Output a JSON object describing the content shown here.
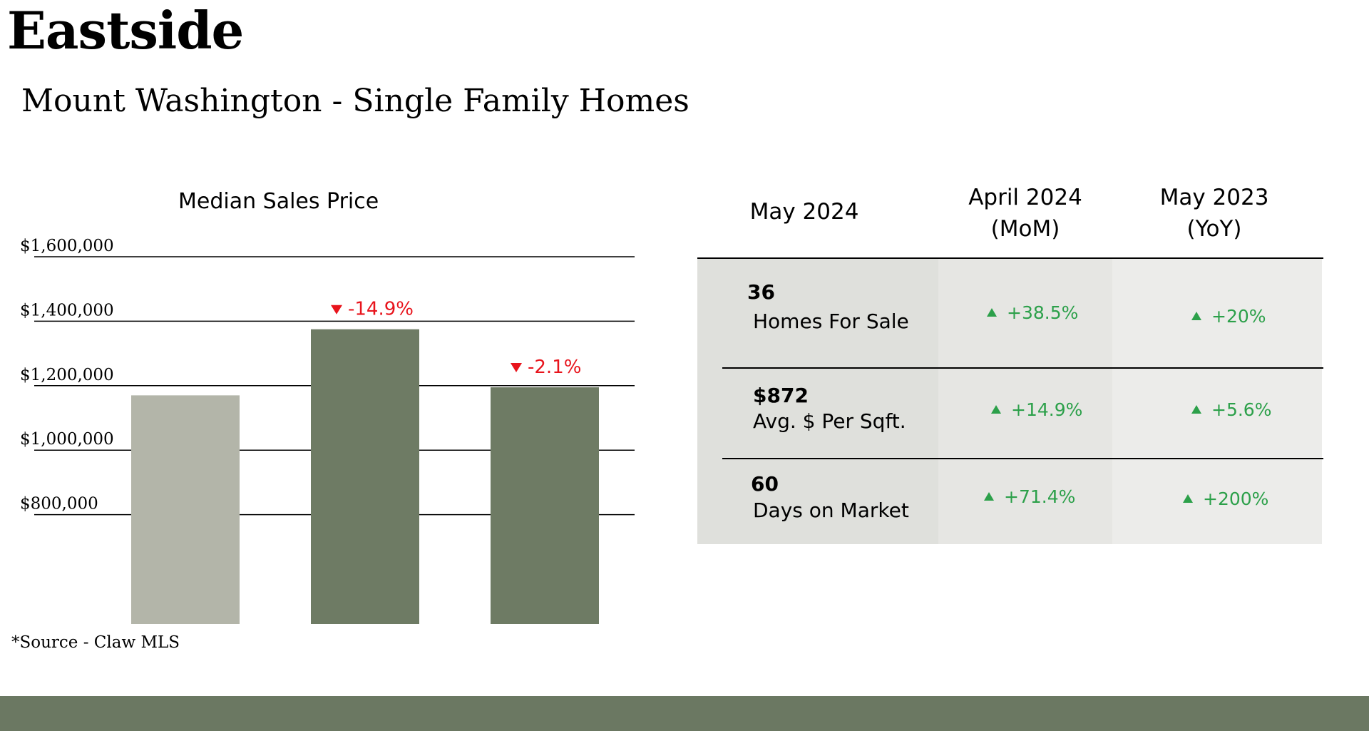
{
  "region": "Eastside",
  "subtitle": "Mount Washington - Single Family Homes",
  "source": "*Source - Claw MLS",
  "colors": {
    "bar_current": "#b3b5a9",
    "bar_compare": "#6e7b64",
    "negative": "#e8141c",
    "positive": "#2ca04a",
    "footer": "#6b7862",
    "col1_bg": "#dfe0dc",
    "col2_bg": "#e6e6e3",
    "col3_bg": "#ececea"
  },
  "chart_data": {
    "type": "bar",
    "title": "Median Sales Price",
    "categories": [
      "May 2024",
      "April 2024 (MoM)",
      "May 2023 (YoY)"
    ],
    "values": [
      1170000,
      1375000,
      1195000
    ],
    "changes": [
      "",
      "-14.9%",
      "-2.1%"
    ],
    "yticks": [
      "$800,000",
      "$1,000,000",
      "$1,200,000",
      "$1,400,000",
      "$1,600,000"
    ],
    "ytick_values": [
      800000,
      1000000,
      1200000,
      1400000,
      1600000
    ],
    "ylim": [
      600000,
      1600000
    ],
    "grid": true
  },
  "table": {
    "headers": [
      {
        "line1": "May 2024",
        "line2": ""
      },
      {
        "line1": "April 2024",
        "line2": "(MoM)"
      },
      {
        "line1": "May 2023",
        "line2": "(YoY)"
      }
    ],
    "rows": [
      {
        "value": "36",
        "label": "Homes For Sale",
        "mom": "+38.5%",
        "yoy": "+20%"
      },
      {
        "value": "$872",
        "label": "Avg. $ Per Sqft.",
        "mom": "+14.9%",
        "yoy": "+5.6%"
      },
      {
        "value": "60",
        "label": "Days on Market",
        "mom": "+71.4%",
        "yoy": "+200%"
      }
    ]
  }
}
